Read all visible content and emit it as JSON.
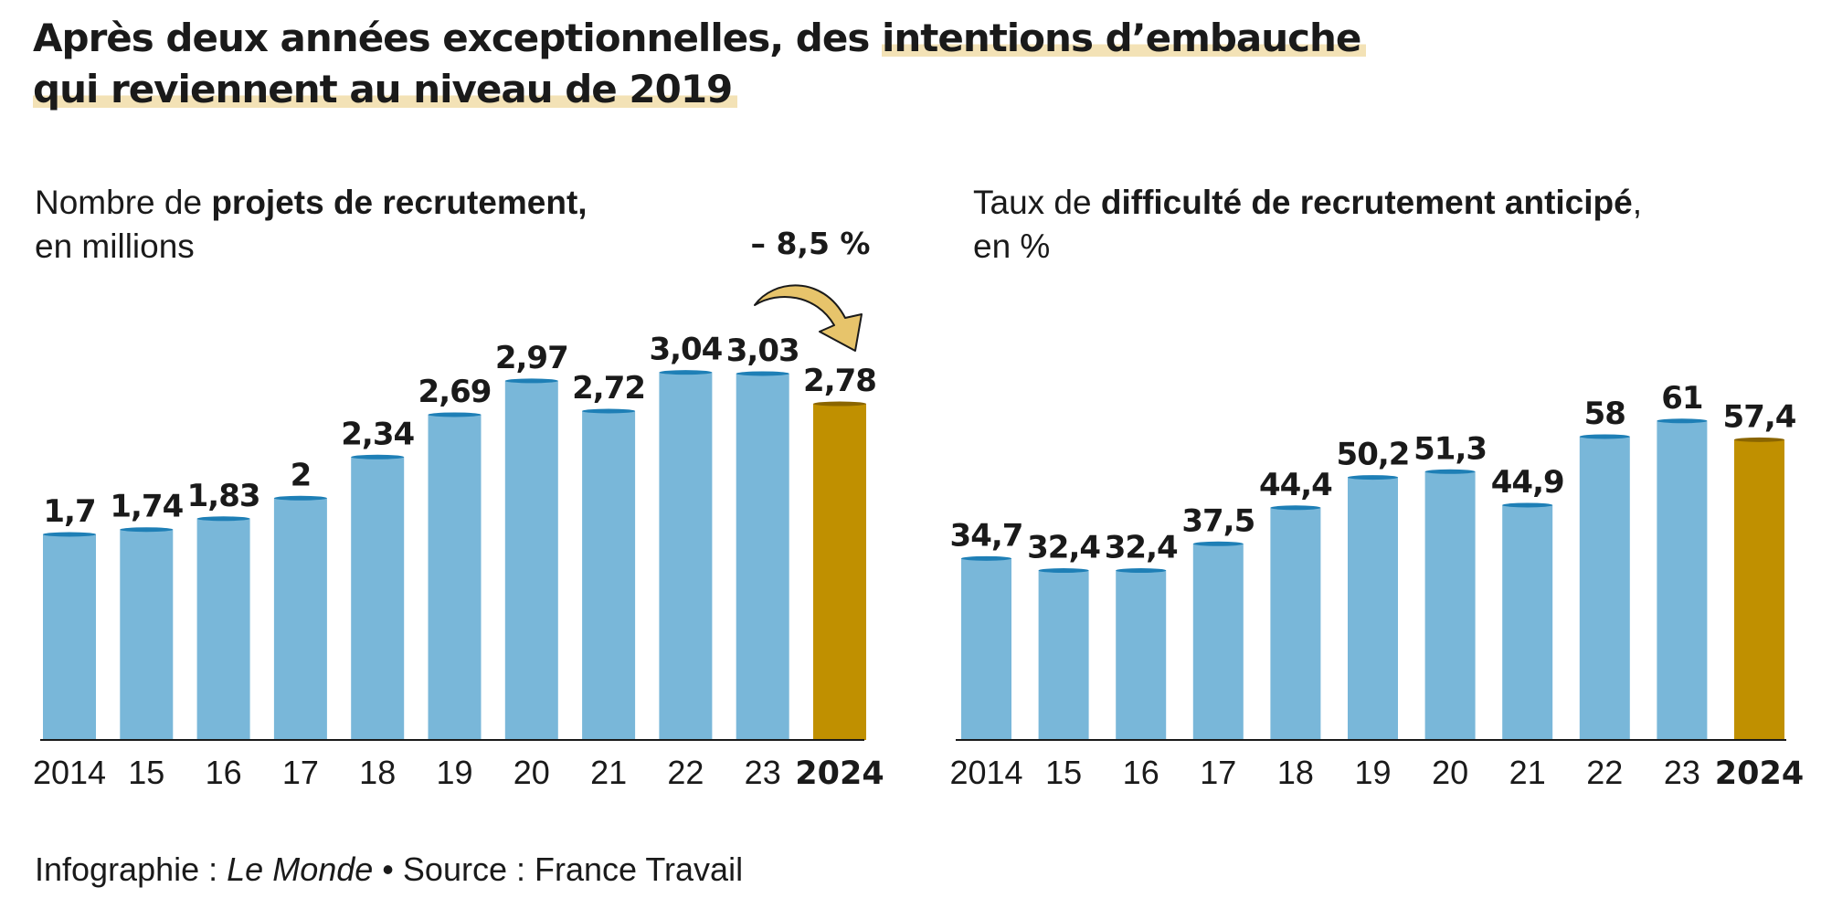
{
  "headline": {
    "part1": "Après deux années exceptionnelles, des ",
    "highlight1": "intentions d’embauche",
    "highlight2": "qui reviennent au niveau de 2019"
  },
  "colors": {
    "bar": "#79b7d9",
    "bar_top": "#1e7fb6",
    "highlight_bar": "#c09000",
    "highlight_bar_top": "#8a6500",
    "arrow": "#e7c46b",
    "baseline": "#1a1a1a"
  },
  "chart_data": [
    {
      "type": "bar",
      "subtitle_pre": "Nombre de ",
      "subtitle_bold": "projets de recrutement,",
      "subtitle_line2": "en millions",
      "categories": [
        "2014",
        "15",
        "16",
        "17",
        "18",
        "19",
        "20",
        "21",
        "22",
        "23",
        "2024"
      ],
      "values": [
        1.7,
        1.74,
        1.83,
        2,
        2.34,
        2.69,
        2.97,
        2.72,
        3.04,
        3.03,
        2.78
      ],
      "value_labels": [
        "1,7",
        "1,74",
        "1,83",
        "2",
        "2,34",
        "2,69",
        "2,97",
        "2,72",
        "3,04",
        "3,03",
        "2,78"
      ],
      "highlight_index": 10,
      "bold_value_indices": [
        9,
        10
      ],
      "bold_category_indices": [
        10
      ],
      "annotation": "– 8,5 %",
      "ylim": [
        0,
        3.4
      ],
      "grid": false
    },
    {
      "type": "bar",
      "subtitle_pre": "Taux de ",
      "subtitle_bold": "difficulté de recrutement anticipé",
      "subtitle_post": ",",
      "subtitle_line2": "en %",
      "categories": [
        "2014",
        "15",
        "16",
        "17",
        "18",
        "19",
        "20",
        "21",
        "22",
        "23",
        "2024"
      ],
      "values": [
        34.7,
        32.4,
        32.4,
        37.5,
        44.4,
        50.2,
        51.3,
        44.9,
        58,
        61,
        57.4
      ],
      "value_labels": [
        "34,7",
        "32,4",
        "32,4",
        "37,5",
        "44,4",
        "50,2",
        "51,3",
        "44,9",
        "58",
        "61",
        "57,4"
      ],
      "highlight_index": 10,
      "bold_value_indices": [
        9,
        10
      ],
      "bold_category_indices": [
        10
      ],
      "ylim": [
        0,
        78.6
      ],
      "grid": false
    }
  ],
  "footer": {
    "prefix": "Infographie : ",
    "brand": "Le Monde",
    "bullet": "•",
    "source": "Source : France Travail"
  }
}
